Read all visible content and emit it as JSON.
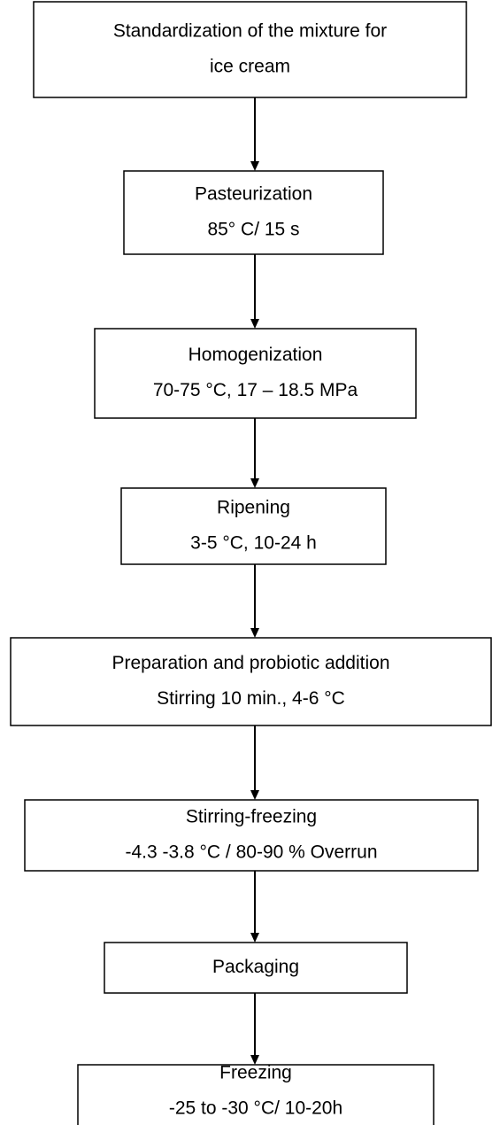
{
  "nodes": [
    {
      "lines": [
        "Standardization of the mixture for",
        "ice cream"
      ]
    },
    {
      "lines": [
        "Pasteurization",
        "85° C/ 15 s"
      ]
    },
    {
      "lines": [
        "Homogenization",
        "70-75 °C, 17 – 18.5 MPa"
      ]
    },
    {
      "lines": [
        "Ripening",
        "3-5 °C, 10-24 h"
      ]
    },
    {
      "lines": [
        "Preparation and probiotic addition",
        "Stirring 10 min., 4-6 °C"
      ]
    },
    {
      "lines": [
        "Stirring-freezing",
        "-4.3 -3.8 °C / 80-90 % Overrun"
      ]
    },
    {
      "lines": [
        "Packaging"
      ]
    },
    {
      "lines": [
        "Freezing",
        "-25 to -30 °C/ 10-20h"
      ]
    }
  ]
}
